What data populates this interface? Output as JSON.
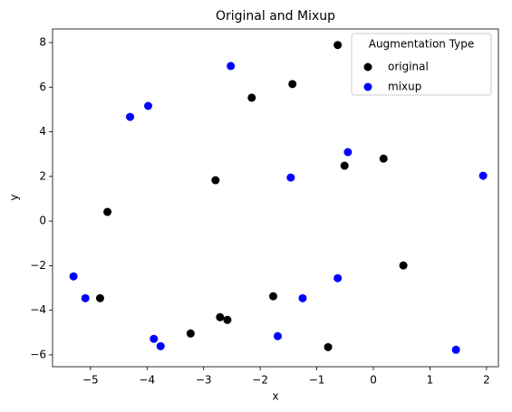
{
  "chart_data": {
    "type": "scatter",
    "title": "Original and Mixup",
    "x_label": "x",
    "y_label": "y",
    "legend_title": "Augmentation Type",
    "legend_position": "upper right",
    "grid": false,
    "xlim": [
      -5.67,
      2.21
    ],
    "ylim": [
      -6.53,
      8.61
    ],
    "xticks": [
      {
        "value": -5,
        "label": "−5"
      },
      {
        "value": -4,
        "label": "−4"
      },
      {
        "value": -3,
        "label": "−3"
      },
      {
        "value": -2,
        "label": "−2"
      },
      {
        "value": -1,
        "label": "−1"
      },
      0,
      1,
      2
    ],
    "yticks": [
      {
        "value": -6,
        "label": "−6"
      },
      {
        "value": -4,
        "label": "−4"
      },
      {
        "value": -2,
        "label": "−2"
      },
      0,
      2,
      4,
      6,
      8
    ],
    "series": [
      {
        "name": "original",
        "color": "#000000",
        "x": [
          -0.63,
          -1.43,
          -2.15,
          -2.79,
          -0.51,
          0.18,
          -4.7,
          0.53,
          -4.83,
          -1.77,
          -2.71,
          -2.58,
          -3.23,
          -0.8
        ],
        "values": [
          7.89,
          6.14,
          5.53,
          1.83,
          2.48,
          2.8,
          0.41,
          -1.99,
          -3.46,
          -3.37,
          -4.31,
          -4.43,
          -5.04,
          -5.65
        ]
      },
      {
        "name": "mixup",
        "color": "#0000ff",
        "x": [
          -2.52,
          -3.98,
          -4.3,
          -0.45,
          -1.46,
          1.94,
          -5.3,
          -5.09,
          -0.63,
          -1.25,
          -1.69,
          -3.88,
          -3.76,
          1.46
        ],
        "values": [
          6.95,
          5.16,
          4.67,
          3.09,
          1.95,
          2.03,
          -2.48,
          -3.46,
          -2.56,
          -3.46,
          -5.16,
          -5.28,
          -5.61,
          -5.77
        ]
      }
    ]
  }
}
